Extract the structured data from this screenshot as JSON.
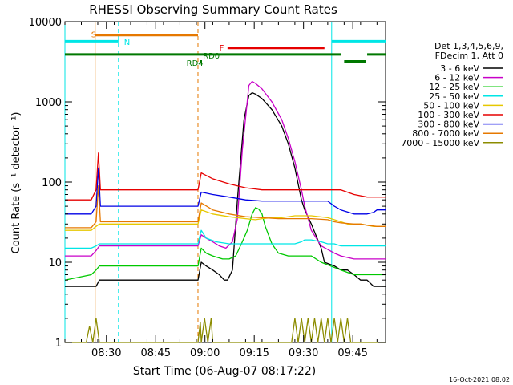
{
  "chart_data": {
    "type": "line",
    "title": "RHESSI Observing Summary Count Rates",
    "xlabel": "Start Time (06-Aug-07 08:17:22)",
    "ylabel": "Count Rate (s⁻¹ detector⁻¹)",
    "x_units": "minutes since 08:17:22",
    "xlim": [
      0,
      97.6
    ],
    "ylim": [
      1,
      10000
    ],
    "y_scale": "log",
    "x_ticks": [
      {
        "label": "08:30",
        "x": 12.63
      },
      {
        "label": "08:45",
        "x": 27.63
      },
      {
        "label": "09:00",
        "x": 42.63
      },
      {
        "label": "09:15",
        "x": 57.63
      },
      {
        "label": "09:30",
        "x": 72.63
      },
      {
        "label": "09:45",
        "x": 87.63
      }
    ],
    "y_ticks": [
      {
        "label": "1",
        "y": 1
      },
      {
        "label": "10",
        "y": 10
      },
      {
        "label": "100",
        "y": 100
      },
      {
        "label": "1000",
        "y": 1000
      },
      {
        "label": "10000",
        "y": 10000
      }
    ],
    "legend_header": [
      "Det 1,3,4,5,6,9,",
      "FDecim 1, Att 0"
    ],
    "legend_position": "right",
    "series": [
      {
        "name": "3 - 6 keV",
        "color": "#000000",
        "x": [
          0,
          8,
          9.5,
          10.5,
          40.5,
          41.5,
          43,
          45,
          47,
          48.5,
          49.5,
          51,
          52.5,
          54.5,
          56,
          57,
          58,
          60,
          63,
          66,
          68,
          70,
          72,
          73,
          75,
          78,
          79,
          82,
          84,
          86,
          88,
          90,
          92,
          94,
          96,
          97.6
        ],
        "y": [
          5,
          5,
          5,
          6,
          6,
          10,
          9,
          8,
          7,
          6,
          6,
          8,
          60,
          600,
          1200,
          1300,
          1250,
          1100,
          800,
          500,
          300,
          150,
          60,
          45,
          30,
          15,
          10,
          9,
          8,
          8,
          7,
          6,
          6,
          5,
          5,
          5
        ]
      },
      {
        "name": "6 - 12 keV",
        "color": "#c800c8",
        "x": [
          0,
          8,
          9.5,
          10.5,
          40.5,
          41.5,
          43,
          45,
          47,
          49,
          51,
          52.5,
          54,
          56,
          57,
          58,
          60,
          63,
          66,
          68,
          70,
          72,
          73,
          75,
          78,
          82,
          84,
          88,
          92,
          97.6
        ],
        "y": [
          12,
          12,
          14,
          16,
          16,
          22,
          20,
          18,
          16,
          15,
          18,
          35,
          250,
          1600,
          1800,
          1700,
          1450,
          1000,
          600,
          350,
          180,
          80,
          50,
          25,
          16,
          13,
          12,
          11,
          11,
          11
        ]
      },
      {
        "name": "12 - 25 keV",
        "color": "#00c800",
        "x": [
          0,
          8,
          9.5,
          10.5,
          40.5,
          41.5,
          43,
          45,
          48,
          50,
          52,
          54,
          55.5,
          57,
          58,
          59,
          60,
          61,
          63,
          65,
          68,
          72,
          75,
          78,
          84,
          88,
          92,
          97.6
        ],
        "y": [
          6,
          7,
          8,
          9,
          9,
          15,
          13,
          12,
          11,
          11,
          12,
          18,
          25,
          40,
          48,
          46,
          40,
          28,
          17,
          13,
          12,
          12,
          12,
          10,
          8,
          7,
          7,
          7
        ]
      },
      {
        "name": "25 - 50 keV",
        "color": "#00e6e6",
        "x": [
          0,
          8,
          9.5,
          10.5,
          40.5,
          41.5,
          43,
          46,
          50,
          55,
          60,
          65,
          70,
          72,
          73,
          75,
          78,
          80,
          82,
          84,
          88,
          92,
          97.6
        ],
        "y": [
          15,
          15,
          16,
          17,
          17,
          25,
          20,
          18,
          17,
          17,
          17,
          17,
          17,
          18,
          19,
          19,
          18,
          17,
          17,
          16,
          16,
          16,
          16
        ]
      },
      {
        "name": "50 - 100 keV",
        "color": "#e6c800",
        "x": [
          0,
          8,
          9.5,
          10.5,
          40.5,
          41.5,
          45,
          50,
          55,
          58,
          60,
          63,
          66,
          70,
          75,
          80,
          82,
          84,
          86,
          90,
          94,
          97.6
        ],
        "y": [
          25,
          25,
          28,
          30,
          30,
          45,
          40,
          37,
          35,
          34,
          35,
          36,
          36,
          38,
          38,
          36,
          34,
          32,
          30,
          30,
          28,
          28
        ]
      },
      {
        "name": "100 - 300 keV",
        "color": "#e60000",
        "x": [
          0,
          8,
          9.5,
          10.2,
          10.8,
          40.5,
          41.5,
          45,
          50,
          55,
          58,
          60,
          65,
          70,
          75,
          80,
          82,
          84,
          88,
          92,
          94,
          95,
          97.6
        ],
        "y": [
          60,
          60,
          80,
          230,
          80,
          80,
          130,
          110,
          95,
          85,
          82,
          80,
          80,
          80,
          80,
          80,
          80,
          80,
          70,
          65,
          65,
          65,
          65
        ]
      },
      {
        "name": "300 - 800 keV",
        "color": "#0000e6",
        "x": [
          0,
          8,
          9.5,
          10.2,
          10.8,
          40.5,
          41.5,
          45,
          50,
          55,
          60,
          65,
          70,
          75,
          80,
          82,
          84,
          88,
          92,
          94,
          95,
          97.6
        ],
        "y": [
          40,
          40,
          50,
          150,
          50,
          50,
          75,
          70,
          65,
          60,
          58,
          58,
          58,
          58,
          58,
          50,
          45,
          40,
          40,
          42,
          45,
          45
        ]
      },
      {
        "name": "800 - 7000 keV",
        "color": "#e67800",
        "x": [
          0,
          8,
          9.5,
          10.2,
          10.8,
          40.5,
          41.5,
          45,
          50,
          55,
          60,
          65,
          70,
          75,
          80,
          82,
          84,
          88,
          90,
          92,
          95,
          97.6
        ],
        "y": [
          27,
          27,
          32,
          90,
          32,
          32,
          55,
          45,
          40,
          37,
          36,
          35,
          35,
          35,
          34,
          32,
          31,
          30,
          30,
          29,
          28,
          28
        ]
      },
      {
        "name": "7000 - 15000 keV",
        "color": "#8c8c00",
        "x": [
          0,
          6.5,
          7.5,
          8.5,
          9.5,
          10.5,
          40.5,
          41.2,
          41.5,
          42.5,
          43.5,
          44.5,
          45,
          69,
          70,
          71,
          72,
          73,
          74,
          75,
          76,
          77,
          78,
          79,
          80,
          81,
          82,
          83,
          84,
          85,
          86,
          87,
          97.6
        ],
        "y": [
          1,
          1,
          1.6,
          1,
          2,
          1,
          1,
          1.8,
          1,
          2,
          1,
          2,
          1,
          1,
          2,
          1,
          2,
          1,
          2,
          1,
          2,
          1,
          2,
          1,
          2,
          1,
          2,
          1,
          2,
          1,
          2,
          1,
          1
        ]
      }
    ],
    "annotations": [
      {
        "text": "S",
        "color": "#e67800",
        "x": 8,
        "y": 7000
      },
      {
        "text": "N",
        "color": "#00e6e6",
        "x": 18,
        "y": 5600
      },
      {
        "text": "F",
        "color": "#e60000",
        "x": 47,
        "y": 4800
      },
      {
        "text": "RD0",
        "color": "#007800",
        "x": 42,
        "y": 3800
      },
      {
        "text": "RD4",
        "color": "#007800",
        "x": 37,
        "y": 3100
      }
    ],
    "flag_bars": [
      {
        "name": "S",
        "color": "#e67800",
        "y": 6800,
        "x0": 9.2,
        "x1": 40.5
      },
      {
        "name": "N",
        "color": "#00e6e6",
        "y": 5700,
        "x0": 0,
        "x1": 16.3
      },
      {
        "name": "N",
        "color": "#00e6e6",
        "y": 5700,
        "x0": 81.2,
        "x1": 97.6
      },
      {
        "name": "F",
        "color": "#e60000",
        "y": 4700,
        "x0": 49.5,
        "x1": 79
      },
      {
        "name": "RD0",
        "color": "#007800",
        "y": 3900,
        "x0": 0,
        "x1": 84
      },
      {
        "name": "RD0",
        "color": "#007800",
        "y": 3900,
        "x0": 92,
        "x1": 97.6
      },
      {
        "name": "RD4",
        "color": "#007800",
        "y": 3200,
        "x0": 41,
        "x1": 41.6
      },
      {
        "name": "RD4",
        "color": "#007800",
        "y": 3200,
        "x0": 85,
        "x1": 91.5
      }
    ],
    "vlines": [
      {
        "color": "#00e6e6",
        "style": "solid",
        "x": 0
      },
      {
        "color": "#e67800",
        "style": "solid",
        "x": 9.2
      },
      {
        "color": "#00e6e6",
        "style": "dashed",
        "x": 16.3
      },
      {
        "color": "#e67800",
        "style": "dashed",
        "x": 40.5
      },
      {
        "color": "#00e6e6",
        "style": "solid",
        "x": 81.2
      },
      {
        "color": "#00e6e6",
        "style": "dashed",
        "x": 96.5
      }
    ],
    "footer_timestamp": "16-Oct-2021 08:02"
  }
}
